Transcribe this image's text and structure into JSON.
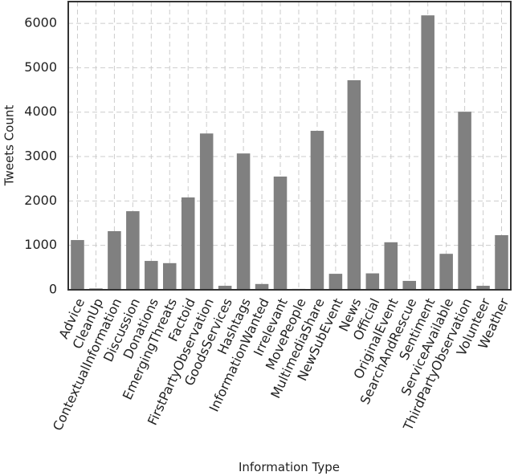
{
  "chart_data": {
    "type": "bar",
    "x_label": "Information Type",
    "y_label": "Tweets Count",
    "categories": [
      "Advice",
      "CleanUp",
      "ContextualInformation",
      "Discussion",
      "Donations",
      "EmergingThreats",
      "Factoid",
      "FirstPartyObservation",
      "GoodsServices",
      "Hashtags",
      "InformationWanted",
      "Irrelevant",
      "MovePeople",
      "MultimediaShare",
      "NewSubEvent",
      "News",
      "Official",
      "OriginalEvent",
      "SearchAndRescue",
      "Sentiment",
      "ServiceAvailable",
      "ThirdPartyObservation",
      "Volunteer",
      "Weather"
    ],
    "values": [
      1120,
      30,
      1320,
      1770,
      650,
      600,
      2080,
      3520,
      90,
      3070,
      130,
      2550,
      20,
      3580,
      360,
      4720,
      370,
      1070,
      200,
      6180,
      810,
      4010,
      90,
      1230
    ],
    "color": "#808080",
    "ylim": [
      0,
      6490
    ],
    "yticks": [
      0,
      1000,
      2000,
      3000,
      4000,
      5000,
      6000
    ],
    "grid": true
  }
}
